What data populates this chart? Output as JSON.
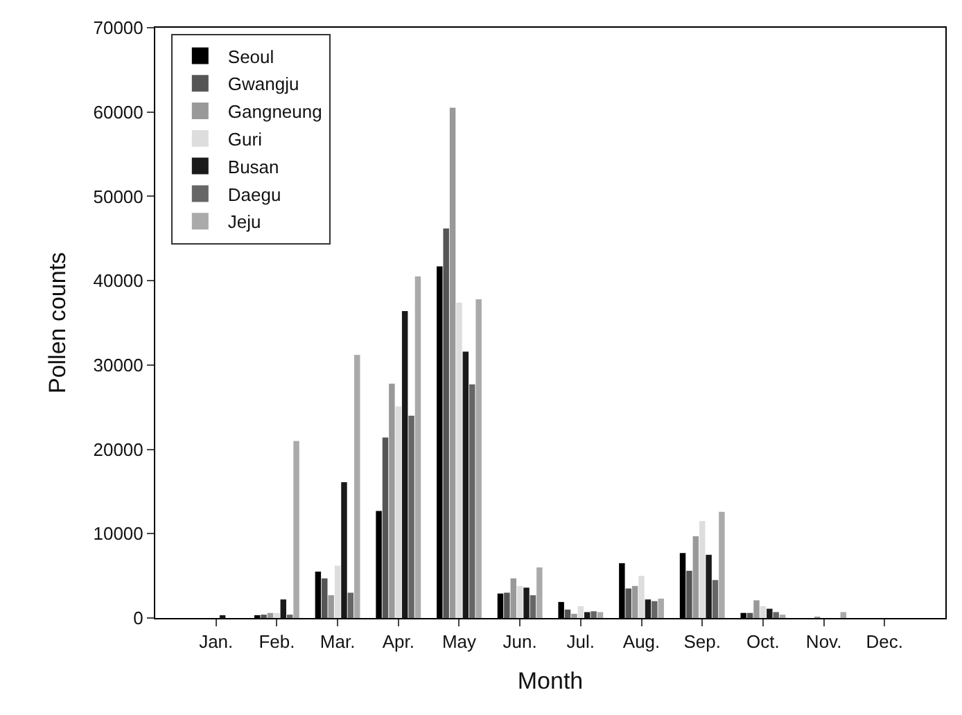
{
  "chart_data": {
    "type": "bar",
    "xlabel": "Month",
    "ylabel": "Pollen counts",
    "categories": [
      "Jan.",
      "Feb.",
      "Mar.",
      "Apr.",
      "May",
      "Jun.",
      "Jul.",
      "Aug.",
      "Sep.",
      "Oct.",
      "Nov.",
      "Dec."
    ],
    "series": [
      {
        "name": "Seoul",
        "color": "#000000",
        "values": [
          null,
          300,
          5500,
          12700,
          41700,
          2900,
          1900,
          6500,
          7700,
          600,
          null,
          null
        ]
      },
      {
        "name": "Gwangju",
        "color": "#555555",
        "values": [
          null,
          400,
          4700,
          21400,
          46200,
          3000,
          1000,
          3500,
          5600,
          600,
          null,
          null
        ]
      },
      {
        "name": "Gangneung",
        "color": "#999999",
        "values": [
          null,
          600,
          2700,
          27800,
          60500,
          4700,
          500,
          3800,
          9700,
          2100,
          100,
          null
        ]
      },
      {
        "name": "Guri",
        "color": "#dddddd",
        "values": [
          null,
          600,
          6200,
          25100,
          37400,
          3800,
          1400,
          5000,
          11500,
          1400,
          null,
          null
        ]
      },
      {
        "name": "Busan",
        "color": "#1a1a1a",
        "values": [
          200,
          2200,
          16100,
          36400,
          31600,
          3600,
          700,
          2200,
          7500,
          1100,
          null,
          null
        ]
      },
      {
        "name": "Daegu",
        "color": "#666666",
        "values": [
          null,
          400,
          3000,
          24000,
          27700,
          2700,
          800,
          2000,
          4500,
          700,
          null,
          null
        ]
      },
      {
        "name": "Jeju",
        "color": "#aaaaaa",
        "values": [
          null,
          21000,
          31200,
          40500,
          37800,
          6000,
          700,
          2300,
          12600,
          400,
          700,
          null
        ]
      }
    ],
    "ylim": [
      0,
      70000
    ],
    "yticks": [
      0,
      10000,
      20000,
      30000,
      40000,
      50000,
      60000,
      70000
    ],
    "legend": "top left"
  }
}
